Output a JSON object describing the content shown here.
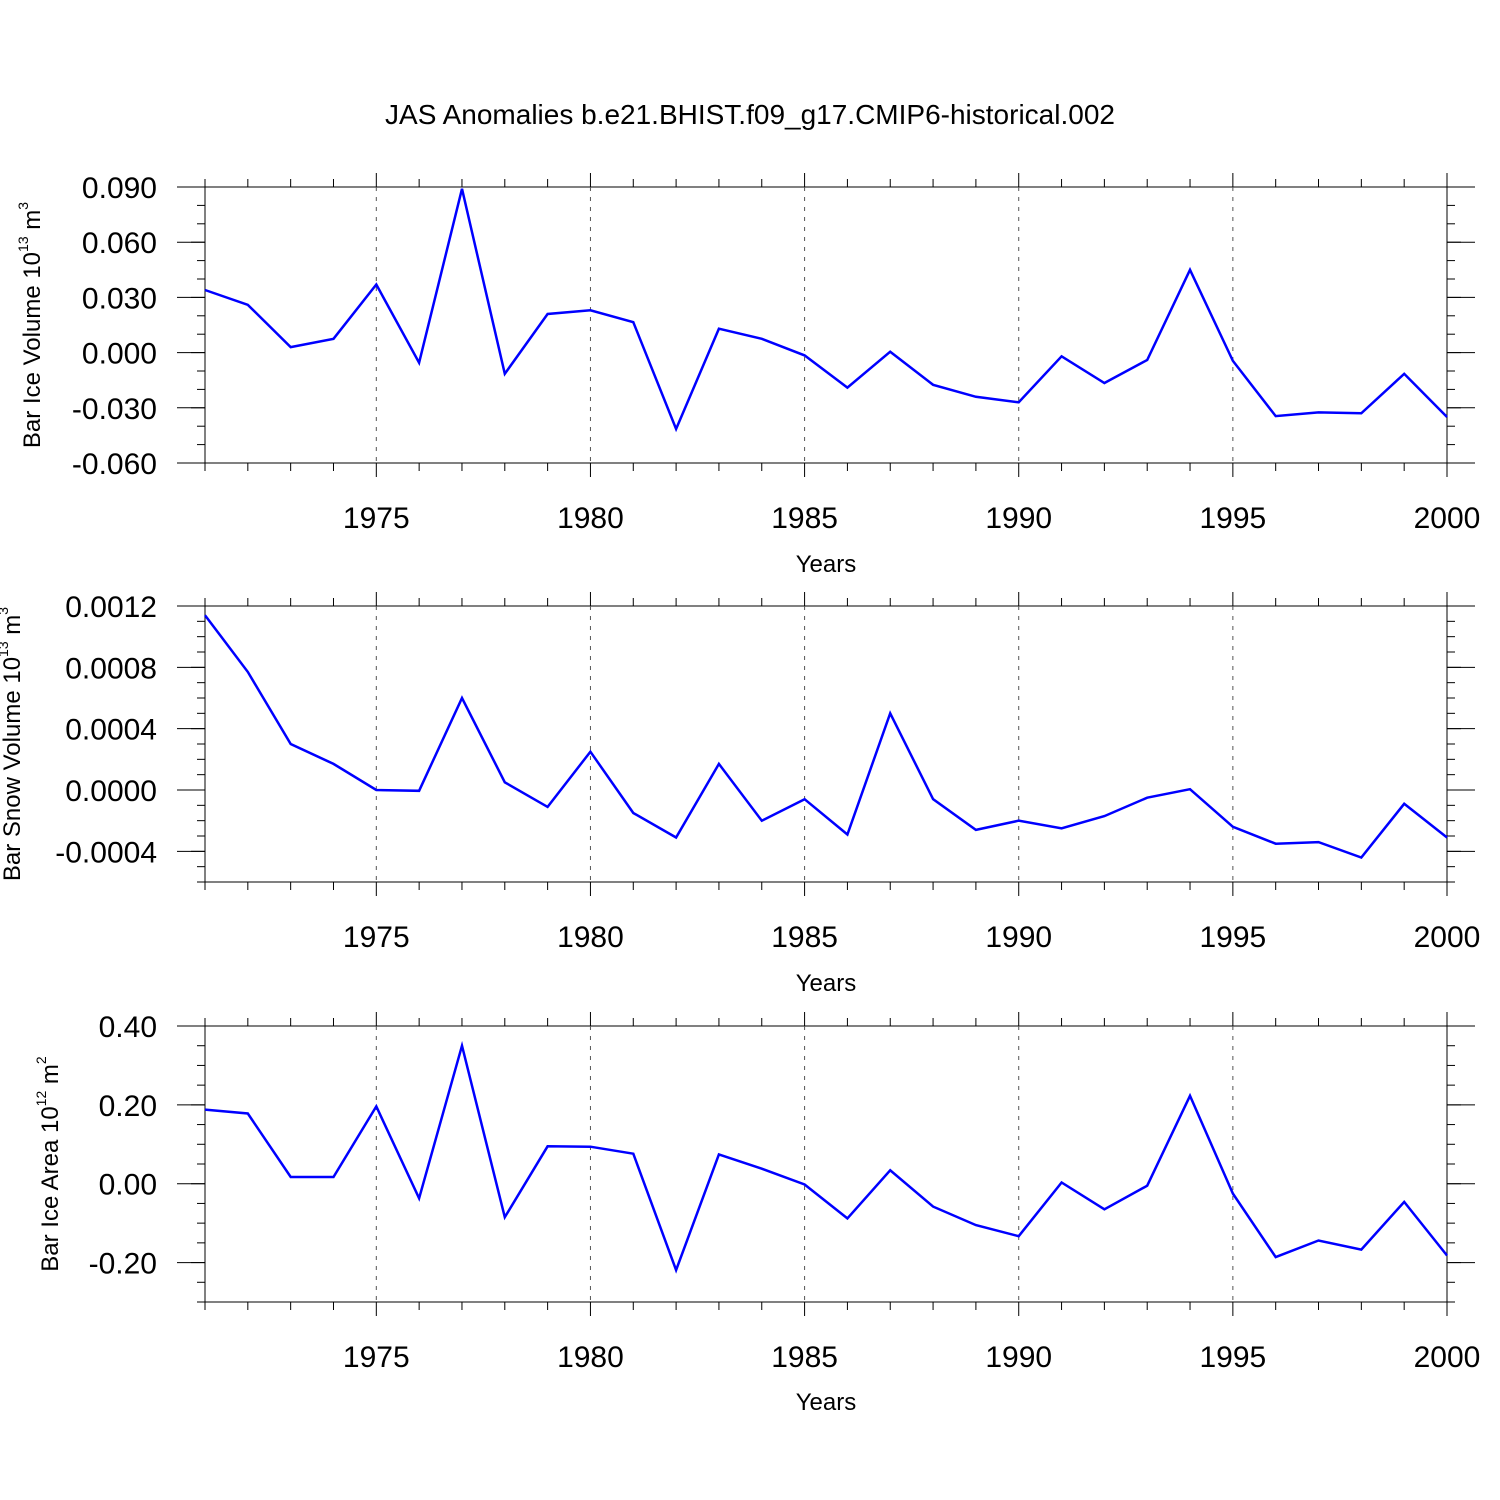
{
  "title": "JAS Anomalies b.e21.BHIST.f09_g17.CMIP6-historical.002",
  "line_color": "#0000ff",
  "chart_data": [
    {
      "type": "line",
      "ylabel": "Bar Ice Volume 10",
      "ylabel_exp": "13",
      "ylabel_unit": " m",
      "ylabel_unit_exp": "3",
      "xlabel": "Years",
      "xlim": [
        1971,
        2000
      ],
      "ylim": [
        -0.06,
        0.09
      ],
      "yticks": [
        -0.06,
        -0.03,
        0.0,
        0.03,
        0.06,
        0.09
      ],
      "ytick_labels": [
        "-0.060",
        "-0.030",
        "0.000",
        "0.030",
        "0.060",
        "0.090"
      ],
      "yminor": 0.01,
      "xticks": [
        1975,
        1980,
        1985,
        1990,
        1995,
        2000
      ],
      "xtick_labels": [
        "1975",
        "1980",
        "1985",
        "1990",
        "1995",
        "2000"
      ],
      "grid": "x-major-dashed",
      "x": [
        1971,
        1972,
        1973,
        1974,
        1975,
        1976,
        1977,
        1978,
        1979,
        1980,
        1981,
        1982,
        1983,
        1984,
        1985,
        1986,
        1987,
        1988,
        1989,
        1990,
        1991,
        1992,
        1993,
        1994,
        1995,
        1996,
        1997,
        1998,
        1999,
        2000
      ],
      "values": [
        0.034,
        0.026,
        0.003,
        0.0075,
        0.037,
        -0.0055,
        0.089,
        -0.0115,
        0.021,
        0.023,
        0.0165,
        -0.0415,
        0.013,
        0.0075,
        -0.0015,
        -0.019,
        0.0005,
        -0.0175,
        -0.024,
        -0.027,
        -0.002,
        -0.0165,
        -0.004,
        0.045,
        -0.0045,
        -0.0345,
        -0.0325,
        -0.033,
        -0.0115,
        -0.035
      ]
    },
    {
      "type": "line",
      "ylabel": "Bar Snow Volume 10",
      "ylabel_exp": "13",
      "ylabel_unit": " m",
      "ylabel_unit_exp": "3",
      "xlabel": "Years",
      "xlim": [
        1971,
        2000
      ],
      "ylim": [
        -0.0006,
        0.0012
      ],
      "yticks": [
        -0.0004,
        0.0,
        0.0004,
        0.0008,
        0.0012
      ],
      "ytick_labels": [
        "-0.0004",
        "0.0000",
        "0.0004",
        "0.0008",
        "0.0012"
      ],
      "yminor": 0.0001,
      "xticks": [
        1975,
        1980,
        1985,
        1990,
        1995,
        2000
      ],
      "xtick_labels": [
        "1975",
        "1980",
        "1985",
        "1990",
        "1995",
        "2000"
      ],
      "grid": "x-major-dashed",
      "x": [
        1971,
        1972,
        1973,
        1974,
        1975,
        1976,
        1977,
        1978,
        1979,
        1980,
        1981,
        1982,
        1983,
        1984,
        1985,
        1986,
        1987,
        1988,
        1989,
        1990,
        1991,
        1992,
        1993,
        1994,
        1995,
        1996,
        1997,
        1998,
        1999,
        2000
      ],
      "values": [
        0.00114,
        0.00077,
        0.0003,
        0.00017,
        0.0,
        -5e-06,
        0.0006,
        5e-05,
        -0.00011,
        0.00025,
        -0.00015,
        -0.00031,
        0.00017,
        -0.0002,
        -6e-05,
        -0.00029,
        0.0005,
        -6e-05,
        -0.00026,
        -0.0002,
        -0.00025,
        -0.00017,
        -5e-05,
        5e-06,
        -0.00024,
        -0.00035,
        -0.00034,
        -0.00044,
        -9e-05,
        -0.00031
      ]
    },
    {
      "type": "line",
      "ylabel": "Bar Ice Area 10",
      "ylabel_exp": "12",
      "ylabel_unit": " m",
      "ylabel_unit_exp": "2",
      "xlabel": "Years",
      "xlim": [
        1971,
        2000
      ],
      "ylim": [
        -0.3,
        0.4
      ],
      "yticks": [
        -0.2,
        0.0,
        0.2,
        0.4
      ],
      "ytick_labels": [
        "-0.20",
        "0.00",
        "0.20",
        "0.40"
      ],
      "yminor": 0.05,
      "xticks": [
        1975,
        1980,
        1985,
        1990,
        1995,
        2000
      ],
      "xtick_labels": [
        "1975",
        "1980",
        "1985",
        "1990",
        "1995",
        "2000"
      ],
      "grid": "x-major-dashed",
      "x": [
        1971,
        1972,
        1973,
        1974,
        1975,
        1976,
        1977,
        1978,
        1979,
        1980,
        1981,
        1982,
        1983,
        1984,
        1985,
        1986,
        1987,
        1988,
        1989,
        1990,
        1991,
        1992,
        1993,
        1994,
        1995,
        1996,
        1997,
        1998,
        1999,
        2000
      ],
      "values": [
        0.188,
        0.178,
        0.017,
        0.017,
        0.196,
        -0.037,
        0.35,
        -0.085,
        0.095,
        0.094,
        0.076,
        -0.219,
        0.074,
        0.038,
        -0.002,
        -0.088,
        0.034,
        -0.058,
        -0.105,
        -0.133,
        0.003,
        -0.065,
        -0.005,
        0.223,
        -0.025,
        -0.186,
        -0.144,
        -0.167,
        -0.046,
        -0.182
      ]
    }
  ]
}
